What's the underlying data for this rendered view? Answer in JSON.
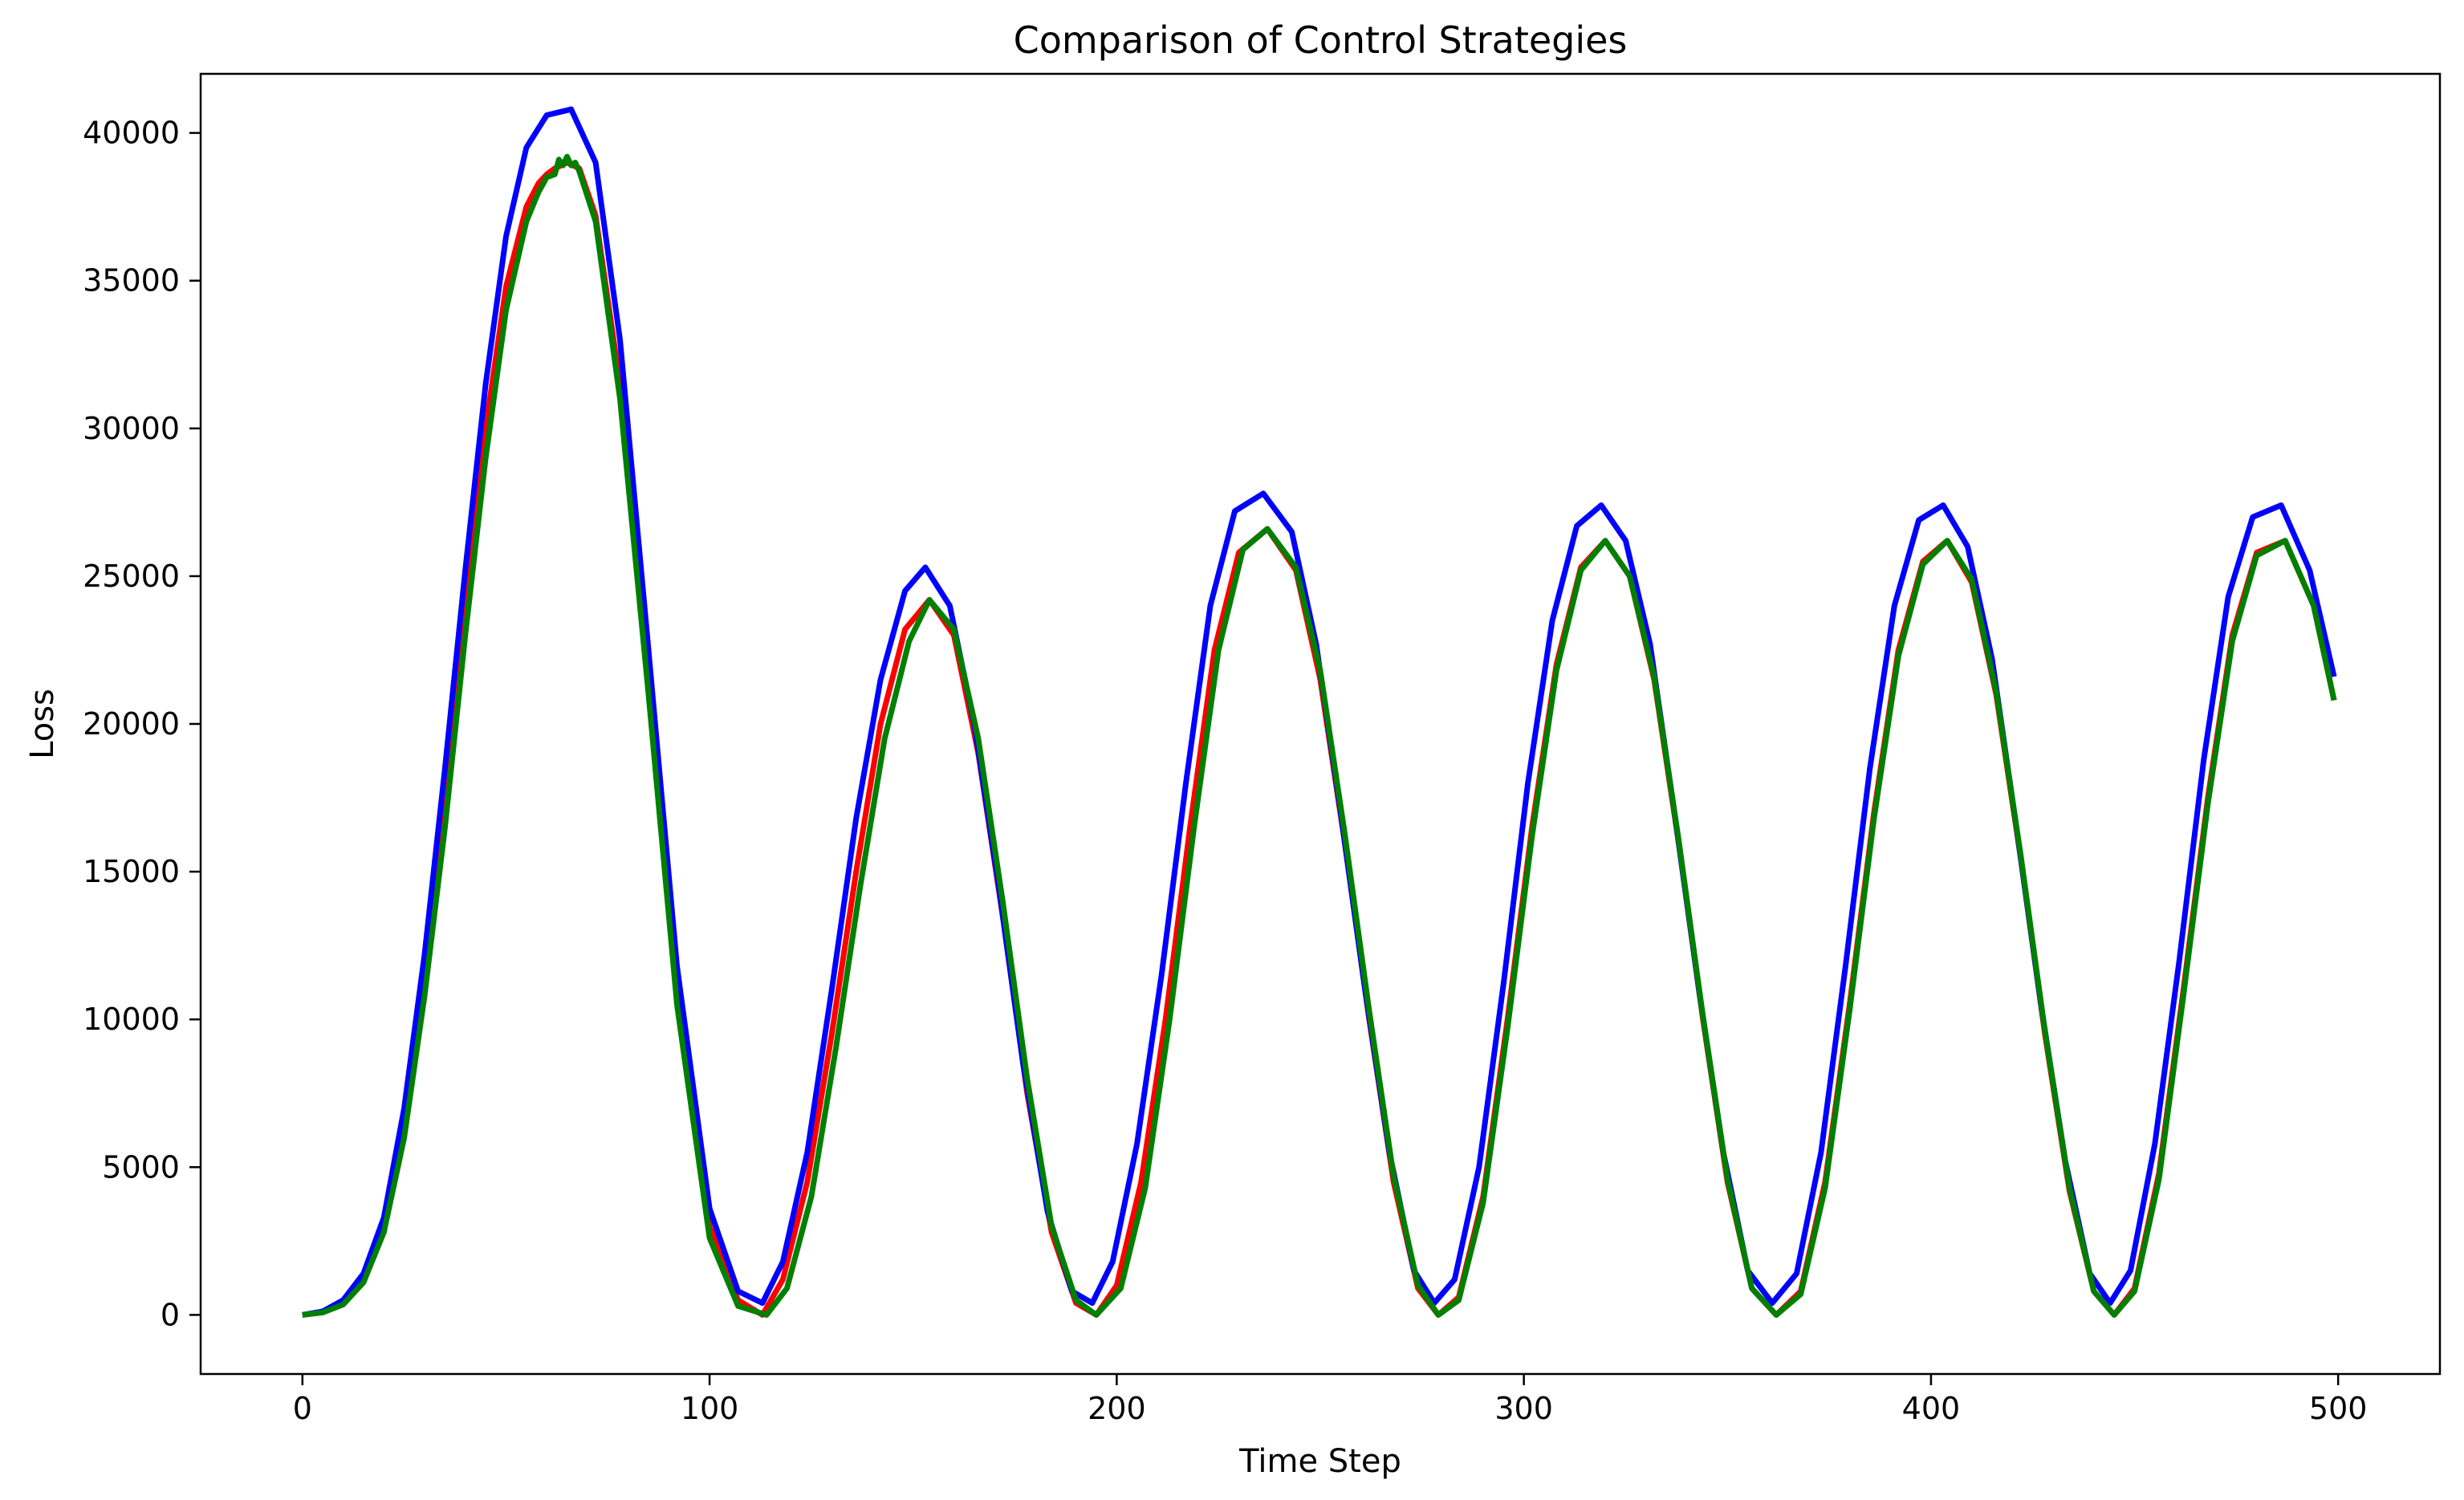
{
  "chart_data": {
    "type": "line",
    "title": "Comparison of Control Strategies",
    "xlabel": "Time Step",
    "ylabel": "Loss",
    "xlim": [
      -25,
      525
    ],
    "ylim": [
      -2000,
      42000
    ],
    "xticks": [
      0,
      100,
      200,
      300,
      400,
      500
    ],
    "yticks": [
      0,
      5000,
      10000,
      15000,
      20000,
      25000,
      30000,
      35000,
      40000
    ],
    "grid": false,
    "legend": "none",
    "series": [
      {
        "color": "#ff0000",
        "x": [
          0,
          5,
          10,
          15,
          20,
          25,
          30,
          35,
          40,
          45,
          50,
          55,
          58,
          60,
          62,
          65,
          68,
          72,
          78,
          85,
          92,
          100,
          107,
          113,
          118,
          124,
          130,
          136,
          142,
          148,
          154,
          160,
          166,
          172,
          178,
          184,
          190,
          195,
          200,
          206,
          212,
          218,
          224,
          230,
          237,
          244,
          250,
          256,
          262,
          268,
          274,
          279,
          284,
          290,
          296,
          302,
          308,
          314,
          320,
          326,
          332,
          338,
          344,
          350,
          356,
          362,
          368,
          374,
          380,
          386,
          392,
          398,
          404,
          410,
          416,
          422,
          428,
          434,
          440,
          445,
          450,
          456,
          462,
          468,
          474,
          480,
          487,
          494,
          499
        ],
        "y": [
          0,
          100,
          400,
          1200,
          3000,
          6500,
          11500,
          17500,
          24000,
          30000,
          34800,
          37500,
          38300,
          38600,
          38800,
          39000,
          38800,
          37200,
          31500,
          21500,
          11000,
          3000,
          500,
          0,
          1200,
          4500,
          9500,
          15000,
          20000,
          23200,
          24200,
          23000,
          19000,
          13500,
          7500,
          2800,
          400,
          0,
          1000,
          4500,
          10000,
          16500,
          22500,
          25800,
          26600,
          25200,
          21500,
          16000,
          10000,
          4500,
          900,
          0,
          600,
          4000,
          10000,
          16500,
          22000,
          25300,
          26200,
          25000,
          21500,
          16000,
          10000,
          4500,
          900,
          0,
          800,
          4500,
          10500,
          17000,
          22500,
          25500,
          26200,
          24800,
          21000,
          15500,
          9500,
          4200,
          800,
          0,
          900,
          4800,
          11000,
          17500,
          23000,
          25800,
          26200,
          24000,
          20800
        ]
      },
      {
        "color": "#0000ff",
        "x": [
          0,
          5,
          10,
          15,
          20,
          25,
          30,
          35,
          40,
          45,
          50,
          55,
          60,
          66,
          72,
          78,
          85,
          92,
          100,
          107,
          113,
          118,
          124,
          130,
          136,
          142,
          148,
          153,
          159,
          165,
          171,
          177,
          183,
          189,
          194,
          199,
          205,
          211,
          217,
          223,
          229,
          236,
          243,
          249,
          255,
          261,
          267,
          273,
          278,
          283,
          289,
          295,
          301,
          307,
          313,
          319,
          325,
          331,
          337,
          343,
          349,
          355,
          361,
          367,
          373,
          379,
          385,
          391,
          397,
          403,
          409,
          415,
          421,
          427,
          433,
          439,
          444,
          449,
          455,
          461,
          467,
          473,
          479,
          486,
          493,
          499
        ],
        "y": [
          0,
          120,
          500,
          1400,
          3300,
          7000,
          12200,
          18500,
          25200,
          31500,
          36500,
          39500,
          40600,
          40800,
          39000,
          33000,
          22500,
          11800,
          3600,
          800,
          400,
          1800,
          5500,
          11000,
          16800,
          21500,
          24500,
          25300,
          24000,
          20000,
          14500,
          8500,
          3500,
          800,
          400,
          1800,
          5800,
          11500,
          18000,
          24000,
          27200,
          27800,
          26500,
          22700,
          17000,
          11000,
          5500,
          1500,
          400,
          1200,
          5000,
          11200,
          18000,
          23500,
          26700,
          27400,
          26200,
          22700,
          17000,
          11000,
          5500,
          1500,
          400,
          1400,
          5500,
          11800,
          18500,
          24000,
          26900,
          27400,
          26000,
          22200,
          16500,
          10500,
          5200,
          1400,
          400,
          1500,
          5800,
          12000,
          18800,
          24300,
          27000,
          27400,
          25200,
          21600
        ]
      },
      {
        "color": "#008000",
        "x": [
          0,
          5,
          10,
          15,
          20,
          25,
          30,
          35,
          40,
          45,
          50,
          55,
          58,
          60,
          62,
          63,
          64,
          65,
          66,
          67,
          68,
          72,
          78,
          85,
          92,
          100,
          107,
          114,
          119,
          125,
          131,
          137,
          143,
          149,
          154,
          160,
          166,
          172,
          178,
          184,
          190,
          195,
          201,
          207,
          213,
          219,
          225,
          231,
          237,
          244,
          250,
          256,
          262,
          268,
          274,
          279,
          284,
          290,
          296,
          302,
          308,
          314,
          320,
          326,
          332,
          338,
          344,
          350,
          356,
          362,
          368,
          374,
          380,
          386,
          392,
          398,
          404,
          410,
          416,
          422,
          428,
          434,
          440,
          445,
          450,
          456,
          462,
          468,
          474,
          480,
          487,
          494,
          499
        ],
        "y": [
          0,
          80,
          350,
          1100,
          2800,
          6000,
          10800,
          16500,
          23000,
          29000,
          34000,
          37000,
          38000,
          38500,
          38600,
          39100,
          38900,
          39200,
          38900,
          39000,
          38700,
          37000,
          31000,
          21000,
          10500,
          2600,
          300,
          0,
          900,
          4000,
          9000,
          14500,
          19500,
          22800,
          24200,
          23200,
          19500,
          14000,
          8000,
          3000,
          500,
          0,
          900,
          4300,
          10000,
          16500,
          22500,
          25900,
          26600,
          25300,
          21800,
          16300,
          10300,
          4700,
          1000,
          0,
          500,
          3800,
          9700,
          16200,
          21800,
          25200,
          26200,
          25000,
          21600,
          16100,
          10100,
          4600,
          900,
          0,
          700,
          4300,
          10300,
          16800,
          22300,
          25400,
          26200,
          24900,
          21100,
          15600,
          9600,
          4300,
          800,
          0,
          800,
          4600,
          10800,
          17300,
          22800,
          25700,
          26200,
          24000,
          20800
        ]
      }
    ]
  }
}
